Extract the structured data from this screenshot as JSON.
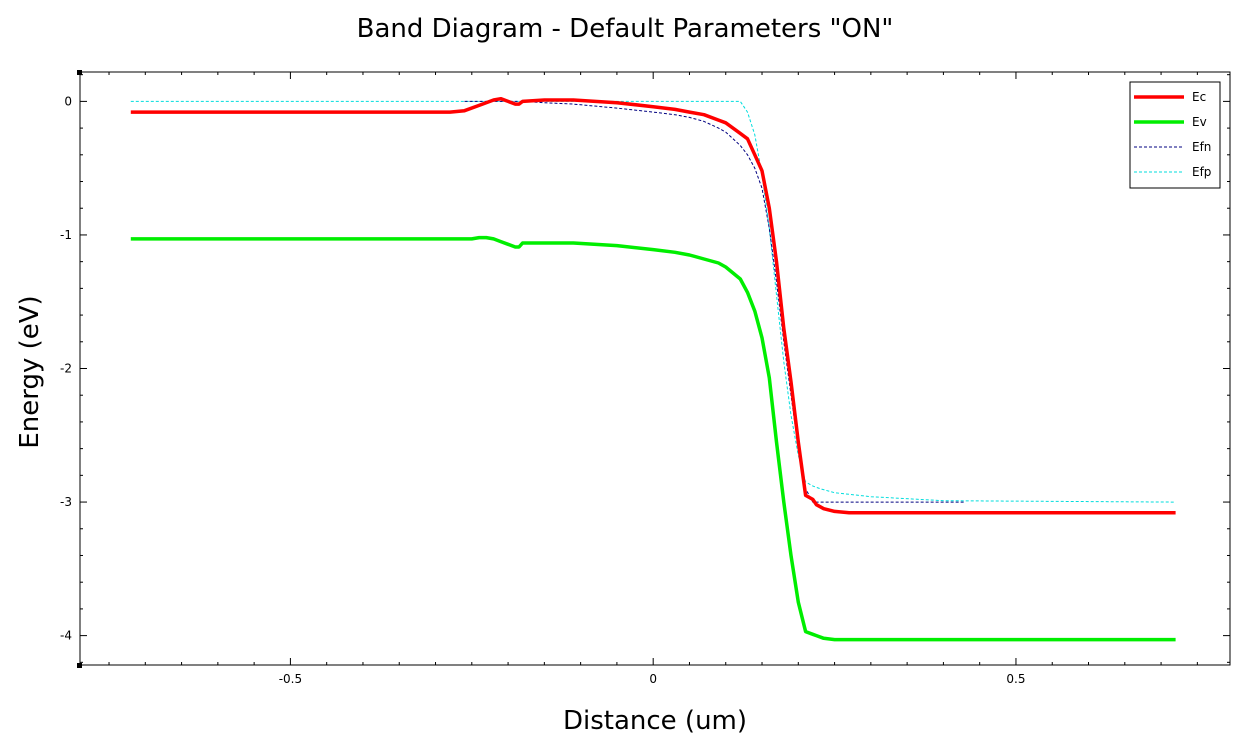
{
  "chart_data": {
    "type": "line",
    "title": "Band Diagram - Default Parameters \"ON\"",
    "xlabel": "Distance (um)",
    "ylabel": "Energy (eV)",
    "xlim": [
      -0.79,
      0.795
    ],
    "ylim": [
      -4.22,
      0.22
    ],
    "xticks": [
      {
        "value": -0.5,
        "label": "-0.5"
      },
      {
        "value": 0,
        "label": "0"
      },
      {
        "value": 0.5,
        "label": "0.5"
      }
    ],
    "yticks": [
      {
        "value": 0,
        "label": "0"
      },
      {
        "value": -1,
        "label": "-1"
      },
      {
        "value": -2,
        "label": "-2"
      },
      {
        "value": -3,
        "label": "-3"
      },
      {
        "value": -4,
        "label": "-4"
      }
    ],
    "grid": false,
    "legend_position": "top-right",
    "series": [
      {
        "name": "Ec",
        "color": "#ff0000",
        "style": "solid",
        "x": [
          -0.72,
          -0.28,
          -0.26,
          -0.24,
          -0.22,
          -0.21,
          -0.2,
          -0.19,
          -0.185,
          -0.18,
          -0.15,
          -0.11,
          -0.05,
          0,
          0.03,
          0.05,
          0.07,
          0.09,
          0.1,
          0.12,
          0.13,
          0.14,
          0.15,
          0.16,
          0.17,
          0.18,
          0.19,
          0.2,
          0.21,
          0.22,
          0.225,
          0.235,
          0.25,
          0.27,
          0.3,
          0.4,
          0.72
        ],
        "y": [
          -0.08,
          -0.08,
          -0.07,
          -0.03,
          0.01,
          0.02,
          0.0,
          -0.02,
          -0.02,
          0.0,
          0.01,
          0.01,
          -0.01,
          -0.04,
          -0.06,
          -0.08,
          -0.1,
          -0.14,
          -0.16,
          -0.24,
          -0.28,
          -0.4,
          -0.52,
          -0.8,
          -1.2,
          -1.7,
          -2.1,
          -2.55,
          -2.95,
          -2.98,
          -3.02,
          -3.05,
          -3.07,
          -3.08,
          -3.08,
          -3.08,
          -3.08
        ]
      },
      {
        "name": "Ev",
        "color": "#00ee00",
        "style": "solid",
        "x": [
          -0.72,
          -0.25,
          -0.24,
          -0.23,
          -0.22,
          -0.21,
          -0.2,
          -0.19,
          -0.185,
          -0.18,
          -0.15,
          -0.11,
          -0.05,
          0,
          0.03,
          0.05,
          0.07,
          0.09,
          0.1,
          0.12,
          0.13,
          0.14,
          0.15,
          0.16,
          0.17,
          0.18,
          0.19,
          0.2,
          0.21,
          0.22,
          0.225,
          0.235,
          0.25,
          0.27,
          0.3,
          0.4,
          0.72
        ],
        "y": [
          -1.03,
          -1.03,
          -1.02,
          -1.02,
          -1.03,
          -1.05,
          -1.07,
          -1.09,
          -1.09,
          -1.06,
          -1.06,
          -1.06,
          -1.08,
          -1.11,
          -1.13,
          -1.15,
          -1.18,
          -1.21,
          -1.24,
          -1.33,
          -1.43,
          -1.57,
          -1.77,
          -2.07,
          -2.55,
          -3.0,
          -3.4,
          -3.75,
          -3.97,
          -3.99,
          -4.0,
          -4.02,
          -4.03,
          -4.03,
          -4.03,
          -4.03,
          -4.03
        ]
      },
      {
        "name": "Efn",
        "color": "#000080",
        "style": "dashed",
        "x": [
          -0.26,
          -0.24,
          -0.22,
          -0.2,
          -0.18,
          -0.15,
          -0.11,
          -0.05,
          0,
          0.03,
          0.05,
          0.07,
          0.09,
          0.1,
          0.12,
          0.13,
          0.14,
          0.15,
          0.16,
          0.17,
          0.18,
          0.19,
          0.2,
          0.21,
          0.22,
          0.23,
          0.25,
          0.3,
          0.43
        ],
        "y": [
          0.0,
          0.0,
          0.0,
          0.0,
          0.0,
          -0.01,
          -0.02,
          -0.05,
          -0.08,
          -0.1,
          -0.12,
          -0.15,
          -0.2,
          -0.23,
          -0.33,
          -0.4,
          -0.5,
          -0.65,
          -0.95,
          -1.35,
          -1.8,
          -2.2,
          -2.6,
          -2.9,
          -3.0,
          -3.0,
          -3.0,
          -3.0,
          -3.0
        ]
      },
      {
        "name": "Efp",
        "color": "#00dddd",
        "style": "dashed",
        "x": [
          -0.72,
          0.0,
          0.1,
          0.11,
          0.12,
          0.13,
          0.14,
          0.15,
          0.16,
          0.17,
          0.18,
          0.19,
          0.2,
          0.21,
          0.22,
          0.23,
          0.25,
          0.3,
          0.4,
          0.72
        ],
        "y": [
          0.0,
          0.0,
          0.0,
          0.0,
          0.0,
          -0.08,
          -0.25,
          -0.55,
          -0.95,
          -1.45,
          -1.95,
          -2.35,
          -2.65,
          -2.85,
          -2.88,
          -2.9,
          -2.93,
          -2.96,
          -2.99,
          -3.0
        ]
      }
    ]
  }
}
